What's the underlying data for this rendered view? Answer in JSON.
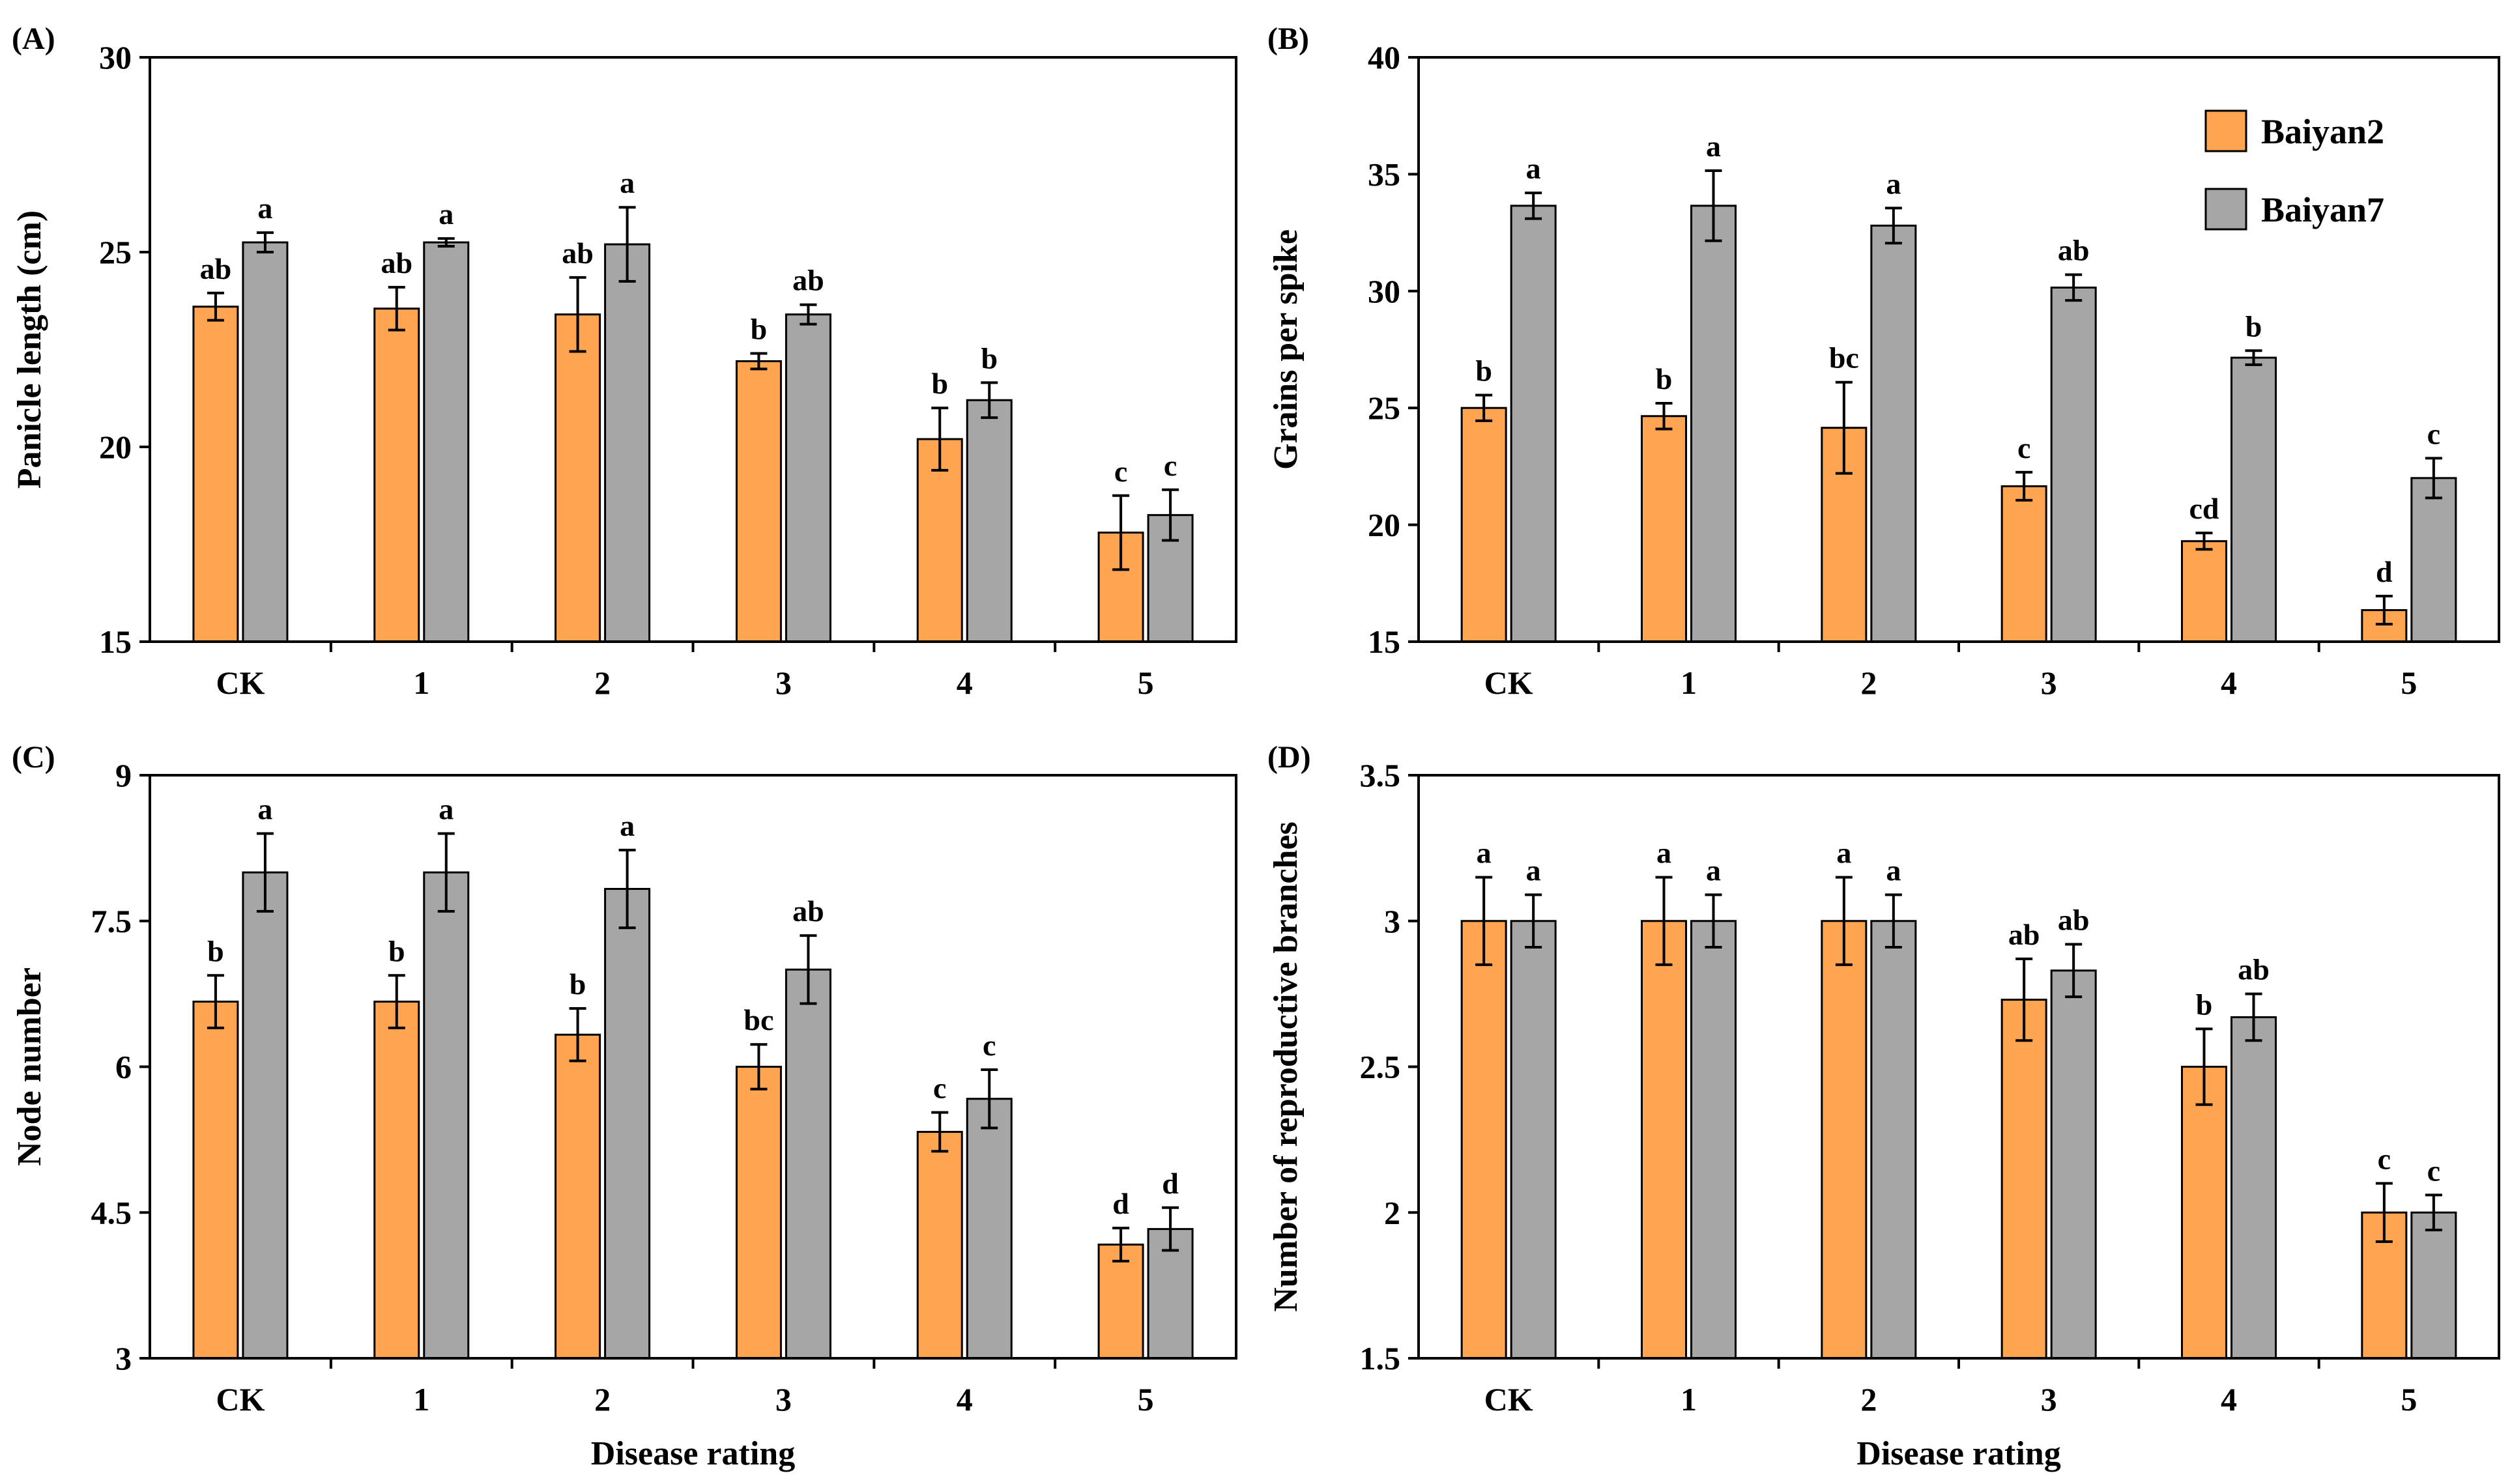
{
  "colors": {
    "baiyan2": "#FFA552",
    "baiyan7": "#A6A6A6"
  },
  "legend": [
    {
      "name": "Baiyan2"
    },
    {
      "name": "Baiyan7"
    }
  ],
  "chart_data": [
    {
      "panel": "(A)",
      "type": "bar",
      "categories": [
        "CK",
        "1",
        "2",
        "3",
        "4",
        "5"
      ],
      "xlabel": "",
      "ylabel": "Panicle length (cm)",
      "ylim": [
        15,
        30
      ],
      "yticks": [
        15,
        20,
        25,
        30
      ],
      "series": [
        {
          "name": "Baiyan2",
          "values": [
            23.6,
            23.55,
            23.4,
            22.2,
            20.2,
            17.8
          ],
          "errors": [
            0.35,
            0.55,
            0.95,
            0.2,
            0.8,
            0.95
          ],
          "labels": [
            "ab",
            "ab",
            "ab",
            "b",
            "b",
            "c"
          ]
        },
        {
          "name": "Baiyan7",
          "values": [
            25.25,
            25.25,
            25.2,
            23.4,
            21.2,
            18.25
          ],
          "errors": [
            0.25,
            0.1,
            0.95,
            0.25,
            0.45,
            0.65
          ],
          "labels": [
            "a",
            "a",
            "a",
            "ab",
            "b",
            "c"
          ]
        }
      ]
    },
    {
      "panel": "(B)",
      "type": "bar",
      "categories": [
        "CK",
        "1",
        "2",
        "3",
        "4",
        "5"
      ],
      "xlabel": "",
      "ylabel": "Grains per spike",
      "ylim": [
        15,
        40
      ],
      "yticks": [
        15,
        20,
        25,
        30,
        35,
        40
      ],
      "series": [
        {
          "name": "Baiyan2",
          "values": [
            25.0,
            24.65,
            24.15,
            21.65,
            19.3,
            16.35
          ],
          "errors": [
            0.55,
            0.55,
            1.95,
            0.6,
            0.35,
            0.6
          ],
          "labels": [
            "b",
            "b",
            "bc",
            "c",
            "cd",
            "d"
          ]
        },
        {
          "name": "Baiyan7",
          "values": [
            33.65,
            33.65,
            32.8,
            30.15,
            27.15,
            22.0
          ],
          "errors": [
            0.55,
            1.5,
            0.75,
            0.55,
            0.3,
            0.85
          ],
          "labels": [
            "a",
            "a",
            "a",
            "ab",
            "b",
            "c"
          ]
        }
      ]
    },
    {
      "panel": "(C)",
      "type": "bar",
      "categories": [
        "CK",
        "1",
        "2",
        "3",
        "4",
        "5"
      ],
      "xlabel": "Disease rating",
      "ylabel": "Node number",
      "ylim": [
        3,
        9
      ],
      "yticks": [
        3,
        4.5,
        6,
        7.5,
        9
      ],
      "series": [
        {
          "name": "Baiyan2",
          "values": [
            6.67,
            6.67,
            6.33,
            6.0,
            5.33,
            4.17
          ],
          "errors": [
            0.27,
            0.27,
            0.27,
            0.23,
            0.2,
            0.17
          ],
          "labels": [
            "b",
            "b",
            "b",
            "bc",
            "c",
            "d"
          ]
        },
        {
          "name": "Baiyan7",
          "values": [
            8.0,
            8.0,
            7.83,
            7.0,
            5.67,
            4.33
          ],
          "errors": [
            0.4,
            0.4,
            0.4,
            0.35,
            0.3,
            0.22
          ],
          "labels": [
            "a",
            "a",
            "a",
            "ab",
            "c",
            "d"
          ]
        }
      ]
    },
    {
      "panel": "(D)",
      "type": "bar",
      "categories": [
        "CK",
        "1",
        "2",
        "3",
        "4",
        "5"
      ],
      "xlabel": "Disease rating",
      "ylabel": "Number of reproductive branches",
      "ylim": [
        1.5,
        3.5
      ],
      "yticks": [
        1.5,
        2,
        2.5,
        3,
        3.5
      ],
      "series": [
        {
          "name": "Baiyan2",
          "values": [
            3.0,
            3.0,
            3.0,
            2.73,
            2.5,
            2.0
          ],
          "errors": [
            0.15,
            0.15,
            0.15,
            0.14,
            0.13,
            0.1
          ],
          "labels": [
            "a",
            "a",
            "a",
            "ab",
            "b",
            "c"
          ]
        },
        {
          "name": "Baiyan7",
          "values": [
            3.0,
            3.0,
            3.0,
            2.83,
            2.67,
            2.0
          ],
          "errors": [
            0.09,
            0.09,
            0.09,
            0.09,
            0.08,
            0.06
          ],
          "labels": [
            "a",
            "a",
            "a",
            "ab",
            "ab",
            "c"
          ]
        }
      ]
    }
  ]
}
